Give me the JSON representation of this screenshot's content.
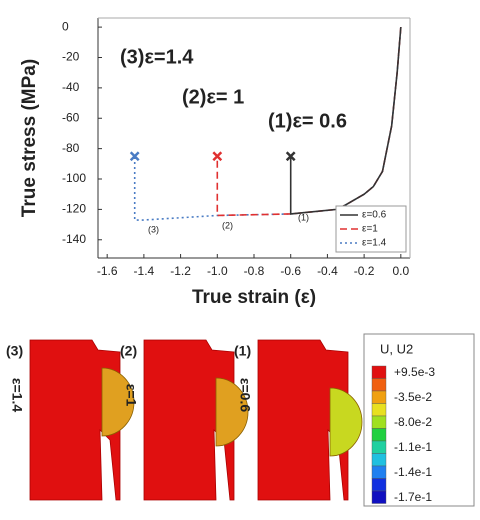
{
  "chart_data": {
    "type": "line",
    "ylabel": "True stress (MPa)",
    "xlabel": "True strain (ε)",
    "xlim": [
      -1.65,
      0.05
    ],
    "ylim": [
      -152,
      6
    ],
    "xticks": [
      -1.6,
      -1.4,
      -1.2,
      {
        "value": -1,
        "label": "-1.0"
      },
      -0.8,
      -0.6,
      -0.4,
      -0.2,
      {
        "value": 0,
        "label": "0.0"
      }
    ],
    "yticks": [
      0,
      -20,
      -40,
      -60,
      -80,
      -100,
      -120,
      -140
    ],
    "legend": "lower right",
    "series": [
      {
        "name": "ε=0.6",
        "color": "#333333",
        "style": "solid",
        "x": [
          0,
          -0.02,
          -0.05,
          -0.1,
          -0.15,
          -0.2,
          -0.3,
          -0.35,
          -0.6,
          -0.6
        ],
        "values": [
          0,
          -30,
          -65,
          -95,
          -105,
          -110,
          -117,
          -120,
          -123,
          -85
        ]
      },
      {
        "name": "ε=1",
        "color": "#e03030",
        "style": "dashed",
        "x": [
          0,
          -0.02,
          -0.05,
          -0.1,
          -0.15,
          -0.2,
          -0.3,
          -0.35,
          -0.6,
          -1.0,
          -1.0
        ],
        "values": [
          0,
          -30,
          -65,
          -95,
          -105,
          -110,
          -117,
          -120,
          -123,
          -124,
          -85
        ]
      },
      {
        "name": "ε=1.4",
        "color": "#4a7cc4",
        "style": "dotted",
        "x": [
          0,
          -0.02,
          -0.05,
          -0.1,
          -0.15,
          -0.2,
          -0.3,
          -0.35,
          -0.6,
          -1.0,
          -1.4,
          -1.45,
          -1.45
        ],
        "values": [
          0,
          -30,
          -65,
          -95,
          -105,
          -110,
          -117,
          -120,
          -123,
          -124,
          -127,
          -127,
          -85
        ]
      }
    ],
    "annotations": [
      {
        "text": "(3)ε=1.4",
        "color": "#4a7cc4"
      },
      {
        "text": "(2)ε= 1",
        "color": "#e03030"
      },
      {
        "text": "(1)ε= 0.6",
        "color": "#111111"
      },
      {
        "text": "(1)",
        "color": "#333333"
      },
      {
        "text": "(2)",
        "color": "#e03030"
      },
      {
        "text": "(3)",
        "color": "#4a7cc4"
      }
    ]
  },
  "panels": [
    {
      "label": "(3)",
      "strain": "ε=1.4",
      "color": "#4a7cc4"
    },
    {
      "label": "(2)",
      "strain": "ε=1",
      "color": "#e03030"
    },
    {
      "label": "(1)",
      "strain": "ε=0.6",
      "color": "#111111"
    }
  ],
  "contour_legend": {
    "title": "U, U2",
    "labels": [
      "+9.5e-3",
      "-3.5e-2",
      "-8.0e-2",
      "-1.1e-1",
      "-1.4e-1",
      "-1.7e-1"
    ]
  }
}
